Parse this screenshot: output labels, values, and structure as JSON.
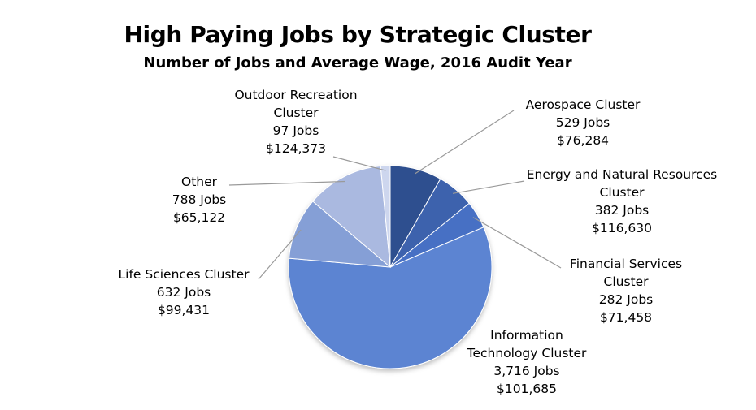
{
  "chart_data": {
    "type": "pie",
    "title": "High Paying Jobs by Strategic Cluster",
    "subtitle": "Number of Jobs and Average Wage, 2016 Audit Year",
    "slices": [
      {
        "name": "Aerospace Cluster",
        "name_lines": [
          "Aerospace Cluster"
        ],
        "jobs": 529,
        "jobs_label": "529 Jobs",
        "wage": "$76,284",
        "color": "#2f4f8f"
      },
      {
        "name": "Energy and Natural Resources Cluster",
        "name_lines": [
          "Energy and Natural Resources",
          "Cluster"
        ],
        "jobs": 382,
        "jobs_label": "382 Jobs",
        "wage": "$116,630",
        "color": "#3d62ad"
      },
      {
        "name": "Financial Services Cluster",
        "name_lines": [
          "Financial Services",
          "Cluster"
        ],
        "jobs": 282,
        "jobs_label": "282 Jobs",
        "wage": "$71,458",
        "color": "#4670c4"
      },
      {
        "name": "Information Technology Cluster",
        "name_lines": [
          "Information",
          "Technology Cluster"
        ],
        "jobs": 3716,
        "jobs_label": "3,716 Jobs",
        "wage": "$101,685",
        "color": "#5b84d2"
      },
      {
        "name": "Life Sciences Cluster",
        "name_lines": [
          "Life Sciences Cluster"
        ],
        "jobs": 632,
        "jobs_label": "632 Jobs",
        "wage": "$99,431",
        "color": "#859fd6"
      },
      {
        "name": "Other",
        "name_lines": [
          "Other"
        ],
        "jobs": 788,
        "jobs_label": "788 Jobs",
        "wage": "$65,122",
        "color": "#aab9e0"
      },
      {
        "name": "Outdoor Recreation Cluster",
        "name_lines": [
          "Outdoor Recreation",
          "Cluster"
        ],
        "jobs": 97,
        "jobs_label": "97 Jobs",
        "wage": "$124,373",
        "color": "#cdd6ee"
      }
    ]
  }
}
